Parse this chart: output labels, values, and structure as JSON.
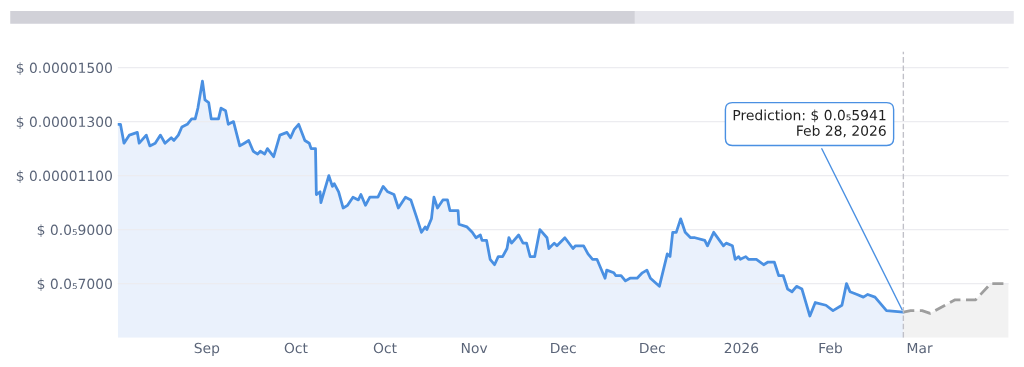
{
  "chart_data": {
    "type": "area",
    "xlim": [
      "2025-08-18",
      "2026-03-26"
    ],
    "xticks": [
      {
        "value": "2025-09-09",
        "label": "Sep"
      },
      {
        "value": "2025-10-01",
        "label": "Oct"
      },
      {
        "value": "2025-10-23",
        "label": "Oct"
      },
      {
        "value": "2025-11-14",
        "label": "Nov"
      },
      {
        "value": "2025-12-06",
        "label": "Dec"
      },
      {
        "value": "2025-12-28",
        "label": "Dec"
      },
      {
        "value": "2026-01-19",
        "label": "2026"
      },
      {
        "value": "2026-02-10",
        "label": "Feb"
      },
      {
        "value": "2026-03-04",
        "label": "Mar"
      }
    ],
    "ylim": [
      5e-06,
      1.56e-05
    ],
    "yticks": [
      {
        "value": 7e-06,
        "label": "$ 0.0₅7000"
      },
      {
        "value": 9e-06,
        "label": "$ 0.0₅9000"
      },
      {
        "value": 1.1e-05,
        "label": "$ 0.00001100"
      },
      {
        "value": 1.3e-05,
        "label": "$ 0.00001300"
      },
      {
        "value": 1.5e-05,
        "label": "$ 0.00001500"
      }
    ],
    "grid": "y",
    "series": [
      {
        "color": "#4a90e2",
        "x": [
          "2025-08-18T00:00",
          "2025-08-18T16:00",
          "2025-08-19T13:00",
          "2025-08-20T21:00",
          "2025-08-22T20:00",
          "2025-08-23T07:00",
          "2025-08-25T01:00",
          "2025-08-25T22:00",
          "2025-08-27T06:00",
          "2025-08-28T13:00",
          "2025-08-29T16:00",
          "2025-08-31T05:00",
          "2025-08-31T21:00",
          "2025-09-01T23:00",
          "2025-09-02T20:00",
          "2025-09-04T04:00",
          "2025-09-05T06:00",
          "2025-09-06T03:00",
          "2025-09-06T19:00",
          "2025-09-07T22:00",
          "2025-09-08T13:00",
          "2025-09-09T11:00",
          "2025-09-10T02:00",
          "2025-09-11T21:00",
          "2025-09-12T12:00",
          "2025-09-13T15:00",
          "2025-09-14T07:00",
          "2025-09-15T14:00",
          "2025-09-17T03:00",
          "2025-09-18T06:00",
          "2025-09-19T08:00",
          "2025-09-20T11:00",
          "2025-09-21T13:00",
          "2025-09-22T05:00",
          "2025-09-23T07:00",
          "2025-09-23T23:00",
          "2025-09-25T12:00",
          "2025-09-27T01:00",
          "2025-09-28T19:00",
          "2025-09-29T16:00",
          "2025-09-30T13:00",
          "2025-10-01T16:00",
          "2025-10-03T05:00",
          "2025-10-04T07:00",
          "2025-10-04T18:00",
          "2025-10-05T20:00",
          "2025-10-06T01:00",
          "2025-10-06T23:00",
          "2025-10-07T04:00",
          "2025-10-09T03:00",
          "2025-10-10T00:00",
          "2025-10-10T11:00",
          "2025-10-11T13:00",
          "2025-10-12T16:00",
          "2025-10-13T18:00",
          "2025-10-15T02:00",
          "2025-10-16T10:00",
          "2025-10-17T01:00",
          "2025-10-18T04:00",
          "2025-10-19T06:00",
          "2025-10-21T06:00",
          "2025-10-22T13:00",
          "2025-10-23T16:00",
          "2025-10-25T05:00",
          "2025-10-26T07:00",
          "2025-10-28T01:00",
          "2025-10-29T09:00",
          "2025-10-30T17:00",
          "2025-11-01T00:00",
          "2025-11-01T22:00",
          "2025-11-02T08:00",
          "2025-11-03T11:00",
          "2025-11-04T02:00",
          "2025-11-04T23:00",
          "2025-11-06T07:00",
          "2025-11-07T10:00",
          "2025-11-08T01:00",
          "2025-11-10T01:00",
          "2025-11-10T06:00",
          "2025-11-12T06:00",
          "2025-11-13T13:00",
          "2025-11-14T11:00",
          "2025-11-15T13:00",
          "2025-11-15T23:00",
          "2025-11-17T02:00",
          "2025-11-17T23:00",
          "2025-11-19T01:00",
          "2025-11-19T23:00",
          "2025-11-21T01:00",
          "2025-11-22T03:00",
          "2025-11-22T14:00",
          "2025-11-23T06:00",
          "2025-11-25T00:00",
          "2025-11-26T02:00",
          "2025-11-26T23:00",
          "2025-11-27T20:00",
          "2025-11-28T23:00",
          "2025-11-30T06:00",
          "2025-12-02T00:00",
          "2025-12-02T11:00",
          "2025-12-03T19:00",
          "2025-12-04T11:00",
          "2025-12-06T10:00",
          "2025-12-08T10:00",
          "2025-12-09T01:00",
          "2025-12-11T01:00",
          "2025-12-12T03:00",
          "2025-12-13T06:00",
          "2025-12-14T08:00",
          "2025-12-16T08:00",
          "2025-12-16T18:00",
          "2025-12-18T12:00",
          "2025-12-18T23:00",
          "2025-12-20T07:00",
          "2025-12-21T09:00",
          "2025-12-22T12:00",
          "2025-12-24T06:00",
          "2025-12-25T13:00",
          "2025-12-26T16:00",
          "2025-12-27T13:00",
          "2025-12-29T18:00",
          "2025-12-31T17:00",
          "2026-01-01T09:00",
          "2026-01-02T01:00",
          "2026-01-02T22:00",
          "2026-01-04T00:00",
          "2026-01-05T03:00",
          "2026-01-06T11:00",
          "2026-01-07T13:00",
          "2026-01-09T23:00",
          "2026-01-10T15:00",
          "2026-01-12T04:00",
          "2026-01-14T14:00",
          "2026-01-15T06:00",
          "2026-01-16T19:00",
          "2026-01-17T11:00",
          "2026-01-18T08:00",
          "2026-01-18T18:00",
          "2026-01-20T02:00",
          "2026-01-20T18:00",
          "2026-01-22T17:00",
          "2026-01-24T12:00",
          "2026-01-25T14:00",
          "2026-01-27T03:00",
          "2026-01-28T05:00",
          "2026-01-29T08:00",
          "2026-01-30T10:00",
          "2026-01-31T12:00",
          "2026-02-01T15:00",
          "2026-02-02T23:00",
          "2026-02-04T22:00",
          "2026-02-06T06:00",
          "2026-02-08T21:00",
          "2026-02-10T15:00",
          "2026-02-12T20:00",
          "2026-02-13T23:00",
          "2026-02-14T20:00",
          "2026-02-16T14:00",
          "2026-02-18T03:00",
          "2026-02-19T05:00",
          "2026-02-21T00:00",
          "2026-02-23T20:00",
          "2026-02-28T00:00"
        ],
        "values": [
          1.29e-05,
          1.29e-05,
          1.22e-05,
          1.25e-05,
          1.26e-05,
          1.22e-05,
          1.25e-05,
          1.21e-05,
          1.22e-05,
          1.25e-05,
          1.22e-05,
          1.24e-05,
          1.23e-05,
          1.25e-05,
          1.28e-05,
          1.29e-05,
          1.31e-05,
          1.31e-05,
          1.35e-05,
          1.45e-05,
          1.38e-05,
          1.37e-05,
          1.31e-05,
          1.31e-05,
          1.35e-05,
          1.34e-05,
          1.29e-05,
          1.3e-05,
          1.21e-05,
          1.22e-05,
          1.23e-05,
          1.19e-05,
          1.18e-05,
          1.19e-05,
          1.18e-05,
          1.2e-05,
          1.17e-05,
          1.25e-05,
          1.26e-05,
          1.24e-05,
          1.27e-05,
          1.29e-05,
          1.23e-05,
          1.22e-05,
          1.2e-05,
          1.2e-05,
          1.03e-05,
          1.04e-05,
          1e-05,
          1.1e-05,
          1.06e-05,
          1.07e-05,
          1.04e-05,
          9.8e-06,
          9.9e-06,
          1.02e-05,
          1.01e-05,
          1.03e-05,
          9.9e-06,
          1.02e-05,
          1.02e-05,
          1.06e-05,
          1.04e-05,
          1.03e-05,
          9.8e-06,
          1.02e-05,
          1.01e-05,
          9.5e-06,
          8.9e-06,
          9.1e-06,
          9e-06,
          9.4e-06,
          1.02e-05,
          9.8e-06,
          1.01e-05,
          1.01e-05,
          9.7e-06,
          9.7e-06,
          9.2e-06,
          9.1e-06,
          8.9e-06,
          8.7e-06,
          8.8e-06,
          8.6e-06,
          8.6e-06,
          7.9e-06,
          7.7e-06,
          8e-06,
          8e-06,
          8.3e-06,
          8.7e-06,
          8.5e-06,
          8.8e-06,
          8.5e-06,
          8.5e-06,
          8e-06,
          8e-06,
          9e-06,
          8.7e-06,
          8.3e-06,
          8.5e-06,
          8.4e-06,
          8.7e-06,
          8.3e-06,
          8.4e-06,
          8.4e-06,
          8.1e-06,
          7.9e-06,
          7.9e-06,
          7.2e-06,
          7.5e-06,
          7.4e-06,
          7.3e-06,
          7.3e-06,
          7.1e-06,
          7.2e-06,
          7.2e-06,
          7.4e-06,
          7.5e-06,
          7.2e-06,
          6.9e-06,
          8.1e-06,
          8e-06,
          8.9e-06,
          8.9e-06,
          9.4e-06,
          8.9e-06,
          8.7e-06,
          8.7e-06,
          8.6e-06,
          8.4e-06,
          8.9e-06,
          8.4e-06,
          8.5e-06,
          8.4e-06,
          7.9e-06,
          8e-06,
          7.9e-06,
          8e-06,
          7.9e-06,
          7.9e-06,
          7.7e-06,
          7.8e-06,
          7.8e-06,
          7.3e-06,
          7.3e-06,
          6.8e-06,
          6.7e-06,
          6.9e-06,
          6.8e-06,
          5.8e-06,
          6.3e-06,
          6.2e-06,
          6e-06,
          6.2e-06,
          7e-06,
          6.7e-06,
          6.6e-06,
          6.5e-06,
          6.6e-06,
          6.5e-06,
          6e-06,
          5.941e-06
        ]
      },
      {
        "color": "#9e9e9e",
        "line_style": "dashed",
        "x": [
          "2026-02-28T00:00",
          "2026-03-01T19:00",
          "2026-03-04T15:00",
          "2026-03-06T15:00",
          "2026-03-09T01:00",
          "2026-03-12T19:00",
          "2026-03-17T20:00",
          "2026-03-21T14:00",
          "2026-03-26T00:00"
        ],
        "values": [
          5.941e-06,
          6e-06,
          6e-06,
          5.9e-06,
          6.1e-06,
          6.4e-06,
          6.4e-06,
          7e-06,
          7e-06
        ]
      }
    ],
    "ref_lines": [
      {
        "axis": "x",
        "value": "2026-02-28",
        "color": "#c0c0c8",
        "line_style": "dashed"
      }
    ],
    "annotations": [
      {
        "text": "Prediction: $ 0.0₅5941\nFeb 28, 2026",
        "x": "2026-02-28",
        "y": 5.941e-06
      }
    ]
  }
}
